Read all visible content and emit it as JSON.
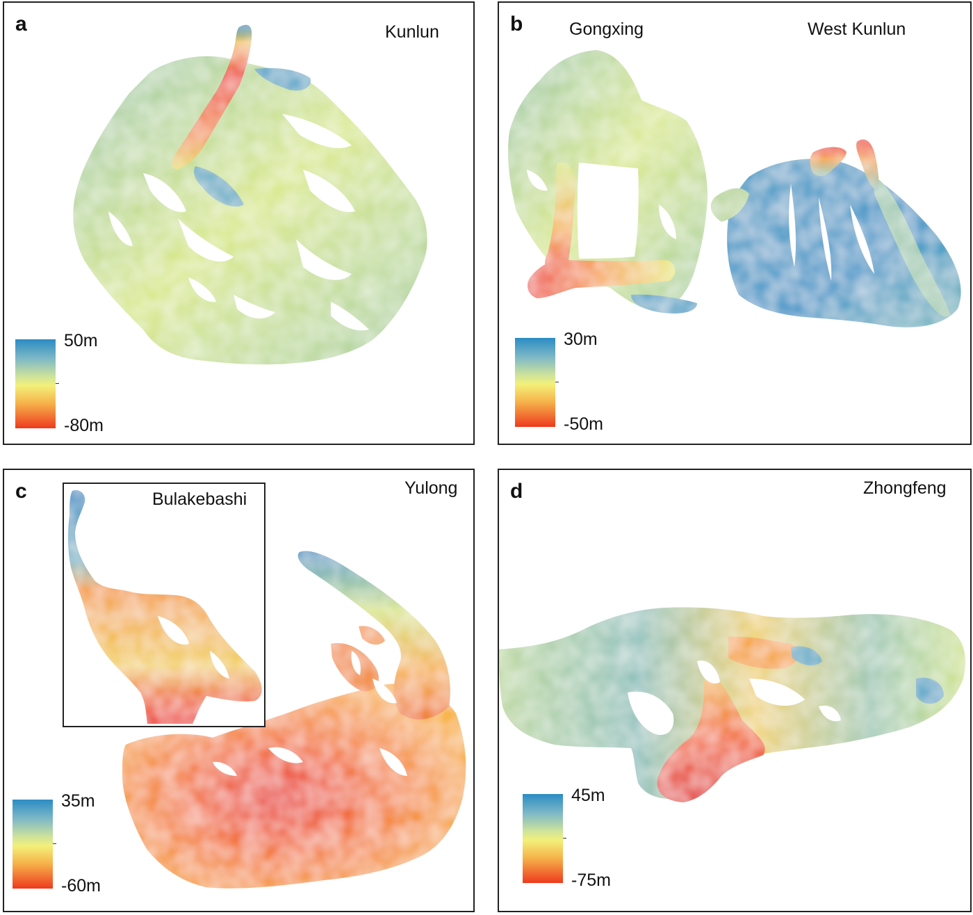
{
  "colors": {
    "high": "#2b8cc4",
    "mid": "#f3f07a",
    "low": "#ee3a1e"
  },
  "panels": [
    {
      "letter": "a",
      "glaciers": [
        "Kunlun"
      ],
      "legend": {
        "max": "50m",
        "min": "-80m"
      }
    },
    {
      "letter": "b",
      "glaciers": [
        "Gongxing",
        "West Kunlun"
      ],
      "legend": {
        "max": "30m",
        "min": "-50m"
      }
    },
    {
      "letter": "c",
      "glaciers": [
        "Yulong",
        "Bulakebashi"
      ],
      "legend": {
        "max": "35m",
        "min": "-60m"
      }
    },
    {
      "letter": "d",
      "glaciers": [
        "Zhongfeng"
      ],
      "legend": {
        "max": "45m",
        "min": "-75m"
      }
    }
  ]
}
